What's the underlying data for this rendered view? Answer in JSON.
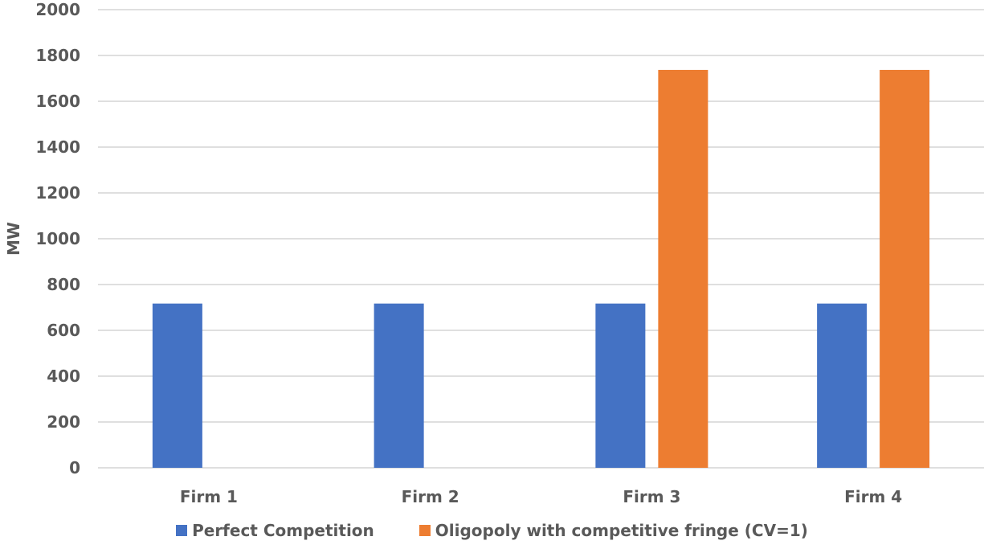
{
  "chart_data": {
    "type": "bar",
    "title": "",
    "xlabel": "",
    "ylabel": "MW",
    "ylim": [
      0,
      2000
    ],
    "yticks": [
      0,
      200,
      400,
      600,
      800,
      1000,
      1200,
      1400,
      1600,
      1800,
      2000
    ],
    "categories": [
      "Firm 1",
      "Firm 2",
      "Firm 3",
      "Firm 4"
    ],
    "series": [
      {
        "name": "Perfect Competition",
        "color": "#4472C4",
        "values": [
          717,
          717,
          717,
          717
        ]
      },
      {
        "name": "Oligopoly with competitive fringe (CV=1)",
        "color": "#ED7D31",
        "values": [
          0,
          0,
          1737,
          1737
        ]
      }
    ],
    "grid": true,
    "legend_position": "bottom"
  }
}
